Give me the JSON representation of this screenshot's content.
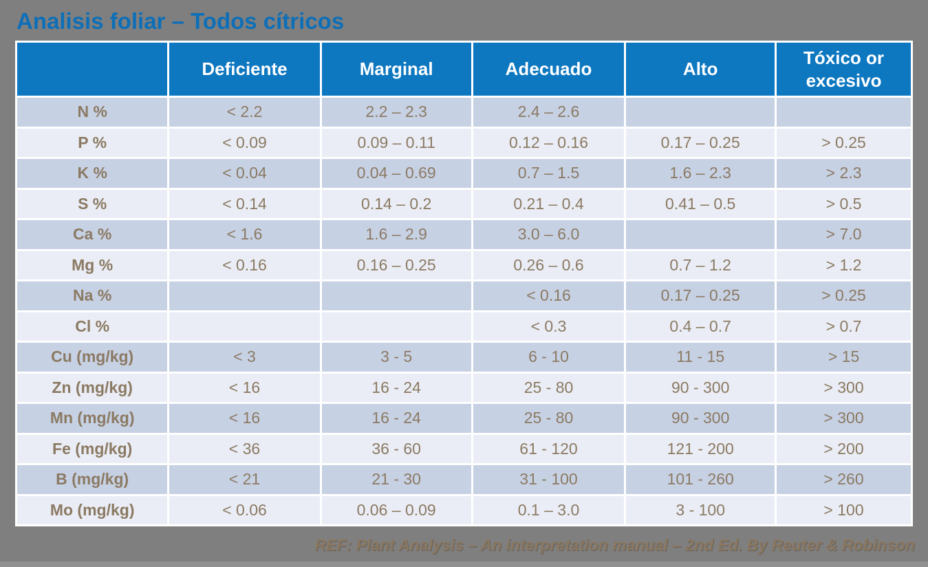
{
  "title": "Analisis foliar – Todos cítricos",
  "colors": {
    "background_gray": "#7f7f7f",
    "title_blue": "#0d6fb8",
    "header_blue": "#0d77c0",
    "row_band_dark": "#c7d1e4",
    "row_band_light": "#eaedf5",
    "cell_text_brown": "#8b7a63",
    "border_white": "#ffffff"
  },
  "table": {
    "columns": [
      "",
      "Deficiente",
      "Marginal",
      "Adecuado",
      "Alto",
      "Tóxico or excesivo"
    ],
    "rows": [
      {
        "label": "N %",
        "cells": [
          "< 2.2",
          "2.2 – 2.3",
          "2.4 – 2.6",
          "",
          ""
        ]
      },
      {
        "label": "P %",
        "cells": [
          "< 0.09",
          "0.09 – 0.11",
          "0.12 – 0.16",
          "0.17 – 0.25",
          "> 0.25"
        ]
      },
      {
        "label": "K %",
        "cells": [
          "< 0.04",
          "0.04 – 0.69",
          "0.7 – 1.5",
          "1.6 – 2.3",
          "> 2.3"
        ]
      },
      {
        "label": "S %",
        "cells": [
          "< 0.14",
          "0.14 – 0.2",
          "0.21 – 0.4",
          "0.41 – 0.5",
          "> 0.5"
        ]
      },
      {
        "label": "Ca %",
        "cells": [
          "< 1.6",
          "1.6 – 2.9",
          "3.0 – 6.0",
          "",
          "> 7.0"
        ]
      },
      {
        "label": "Mg %",
        "cells": [
          "< 0.16",
          "0.16 – 0.25",
          "0.26 – 0.6",
          "0.7 – 1.2",
          "> 1.2"
        ]
      },
      {
        "label": "Na %",
        "cells": [
          "",
          "",
          "< 0.16",
          "0.17 – 0.25",
          "> 0.25"
        ]
      },
      {
        "label": "Cl %",
        "cells": [
          "",
          "",
          "< 0.3",
          "0.4 – 0.7",
          "> 0.7"
        ]
      },
      {
        "label": "Cu (mg/kg)",
        "cells": [
          "< 3",
          "3 - 5",
          "6 - 10",
          "11 - 15",
          "> 15"
        ]
      },
      {
        "label": "Zn (mg/kg)",
        "cells": [
          "< 16",
          "16 - 24",
          "25 - 80",
          "90 - 300",
          "> 300"
        ]
      },
      {
        "label": "Mn (mg/kg)",
        "cells": [
          "< 16",
          "16 - 24",
          "25 - 80",
          "90 - 300",
          "> 300"
        ]
      },
      {
        "label": "Fe (mg/kg)",
        "cells": [
          "< 36",
          "36 - 60",
          "61 - 120",
          "121 - 200",
          "> 200"
        ]
      },
      {
        "label": "B (mg/kg)",
        "cells": [
          "< 21",
          "21 - 30",
          "31 - 100",
          "101 - 260",
          "> 260"
        ]
      },
      {
        "label": "Mo (mg/kg)",
        "cells": [
          "< 0.06",
          "0.06 – 0.09",
          "0.1 – 3.0",
          "3 - 100",
          "> 100"
        ]
      }
    ]
  },
  "footer": {
    "reference": "REF: Plant Analysis – An interpretation manual – 2nd Ed. By Reuter & Robinson"
  }
}
